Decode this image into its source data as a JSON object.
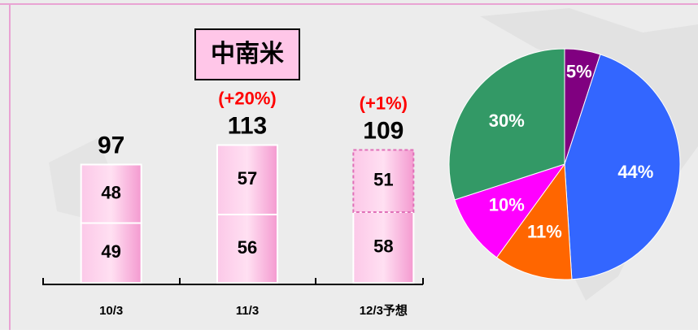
{
  "chart_data": [
    {
      "type": "stacked_bar",
      "title": "中南米",
      "categories": [
        "10/3",
        "11/3",
        "12/3予想"
      ],
      "series": [
        {
          "color": "#f7a6d6",
          "values": [
            49,
            56,
            58
          ],
          "dashed": [
            false,
            false,
            false
          ]
        },
        {
          "color": "#f7a6d6",
          "values": [
            48,
            57,
            51
          ],
          "dashed": [
            false,
            false,
            true
          ]
        }
      ],
      "totals": [
        97,
        113,
        109
      ],
      "changes": [
        null,
        "(+20%)",
        "(+1%)"
      ],
      "ylim": [
        0,
        120
      ]
    },
    {
      "type": "pie",
      "values": [
        5,
        44,
        11,
        10,
        30
      ],
      "value_labels": [
        "5%",
        "44%",
        "11%",
        "10%",
        "30%"
      ],
      "colors": [
        "#800080",
        "#3366ff",
        "#ff6600",
        "#ff00ff",
        "#339966"
      ]
    }
  ]
}
